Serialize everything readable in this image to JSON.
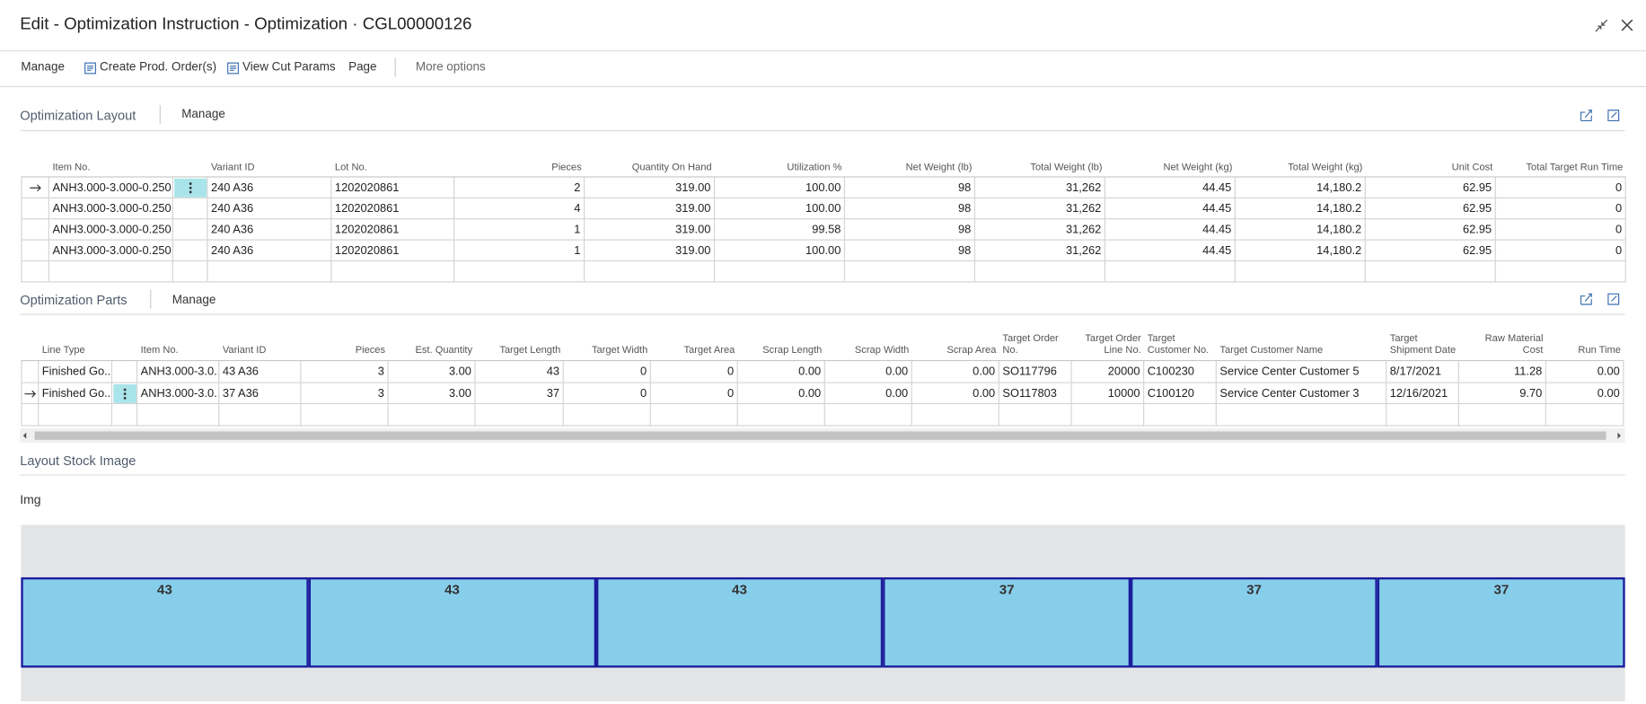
{
  "header": {
    "title": "Edit - Optimization Instruction - Optimization · CGL00000126"
  },
  "actions": [
    "Manage",
    "Create Prod. Order(s)",
    "View Cut Params",
    "Page",
    "More options"
  ],
  "layout": {
    "title": "Optimization Layout",
    "action": "Manage",
    "columns": [
      "Item No.",
      "Variant ID",
      "Lot No.",
      "Pieces",
      "Quantity On Hand",
      "Utilization %",
      "Net Weight (lb)",
      "Total Weight (lb)",
      "Net Weight (kg)",
      "Total Weight (kg)",
      "Unit Cost",
      "Total Target Run Time"
    ],
    "rows": [
      [
        "ANH3.000-3.000-0.250",
        "240 A36",
        "1202020861",
        "2",
        "319.00",
        "100.00",
        "98",
        "31,262",
        "44.45",
        "14,180.2",
        "62.95",
        "0"
      ],
      [
        "ANH3.000-3.000-0.250",
        "240 A36",
        "1202020861",
        "4",
        "319.00",
        "100.00",
        "98",
        "31,262",
        "44.45",
        "14,180.2",
        "62.95",
        "0"
      ],
      [
        "ANH3.000-3.000-0.250",
        "240 A36",
        "1202020861",
        "1",
        "319.00",
        "99.58",
        "98",
        "31,262",
        "44.45",
        "14,180.2",
        "62.95",
        "0"
      ],
      [
        "ANH3.000-3.000-0.250",
        "240 A36",
        "1202020861",
        "1",
        "319.00",
        "100.00",
        "98",
        "31,262",
        "44.45",
        "14,180.2",
        "62.95",
        "0"
      ]
    ]
  },
  "parts": {
    "title": "Optimization Parts",
    "action": "Manage",
    "columns": [
      "Line Type",
      "Item No.",
      "Variant ID",
      "Pieces",
      "Est. Quantity",
      "Target Length",
      "Target Width",
      "Target Area",
      "Scrap Length",
      "Scrap Width",
      "Scrap Area",
      "Target Order No.",
      "Target Order Line No.",
      "Target Customer No.",
      "Target Customer Name",
      "Target Shipment Date",
      "Raw Material Cost",
      "Run Time"
    ],
    "rows": [
      [
        "Finished Go...",
        "ANH3.000-3.0...",
        "43 A36",
        "3",
        "3.00",
        "43",
        "0",
        "0",
        "0.00",
        "0.00",
        "0.00",
        "SO117796",
        "20000",
        "C100230",
        "Service Center Customer 5",
        "8/17/2021",
        "11.28",
        "0.00"
      ],
      [
        "Finished Go...",
        "ANH3.000-3.0...",
        "37 A36",
        "3",
        "3.00",
        "37",
        "0",
        "0",
        "0.00",
        "0.00",
        "0.00",
        "SO117803",
        "10000",
        "C100120",
        "Service Center Customer 3",
        "12/16/2021",
        "9.70",
        "0.00"
      ]
    ]
  },
  "stock_image": {
    "title": "Layout Stock Image",
    "label": "Img",
    "segments": [
      43,
      43,
      43,
      37,
      37,
      37
    ]
  }
}
